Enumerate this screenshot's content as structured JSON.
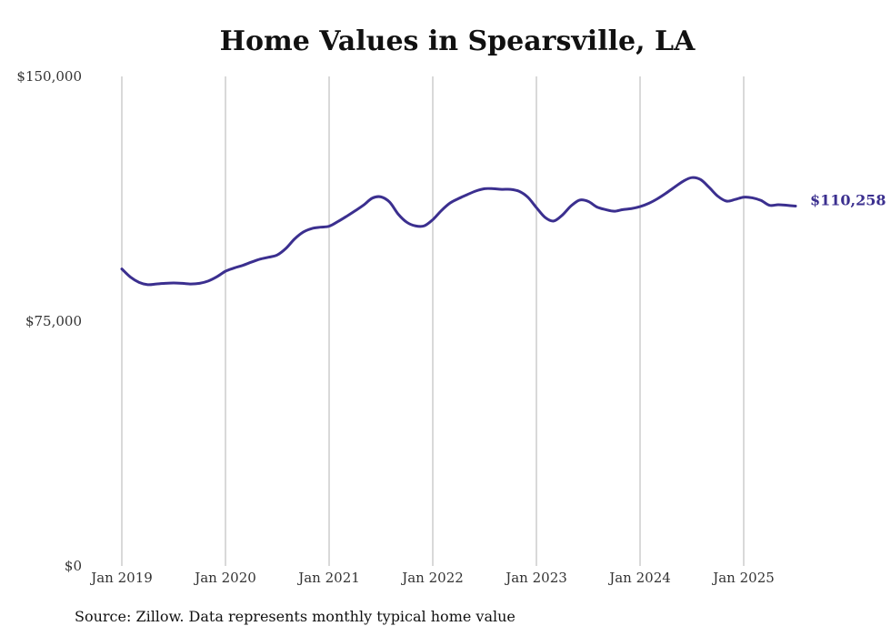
{
  "chart_data": {
    "type": "line",
    "title": "Home Values in Spearsville, LA",
    "source": "Source: Zillow. Data represents monthly typical home value",
    "xlabel": "",
    "ylabel": "",
    "ylim": [
      0,
      150000
    ],
    "yticks": [
      {
        "value": 0,
        "label": "$0"
      },
      {
        "value": 75000,
        "label": "$75,000"
      },
      {
        "value": 150000,
        "label": "$150,000"
      }
    ],
    "xticks": [
      {
        "year": 2019,
        "label": "Jan 2019"
      },
      {
        "year": 2020,
        "label": "Jan 2020"
      },
      {
        "year": 2021,
        "label": "Jan 2021"
      },
      {
        "year": 2022,
        "label": "Jan 2022"
      },
      {
        "year": 2023,
        "label": "Jan 2023"
      },
      {
        "year": 2024,
        "label": "Jan 2024"
      },
      {
        "year": 2025,
        "label": "Jan 2025"
      }
    ],
    "grid": "vertical",
    "line_color": "#3b2f8f",
    "end_label": "$110,258",
    "series": [
      {
        "points": [
          [
            "2019-01",
            91000
          ],
          [
            "2019-02",
            88500
          ],
          [
            "2019-03",
            86900
          ],
          [
            "2019-04",
            86200
          ],
          [
            "2019-05",
            86400
          ],
          [
            "2019-06",
            86600
          ],
          [
            "2019-07",
            86700
          ],
          [
            "2019-08",
            86600
          ],
          [
            "2019-09",
            86400
          ],
          [
            "2019-10",
            86600
          ],
          [
            "2019-11",
            87300
          ],
          [
            "2019-12",
            88600
          ],
          [
            "2020-01",
            90300
          ],
          [
            "2020-02",
            91300
          ],
          [
            "2020-03",
            92100
          ],
          [
            "2020-04",
            93100
          ],
          [
            "2020-05",
            94000
          ],
          [
            "2020-06",
            94600
          ],
          [
            "2020-07",
            95300
          ],
          [
            "2020-08",
            97300
          ],
          [
            "2020-09",
            100200
          ],
          [
            "2020-10",
            102300
          ],
          [
            "2020-11",
            103400
          ],
          [
            "2020-12",
            103800
          ],
          [
            "2021-01",
            104100
          ],
          [
            "2021-02",
            105500
          ],
          [
            "2021-03",
            107100
          ],
          [
            "2021-04",
            108800
          ],
          [
            "2021-05",
            110600
          ],
          [
            "2021-06",
            112700
          ],
          [
            "2021-07",
            113100
          ],
          [
            "2021-08",
            111500
          ],
          [
            "2021-09",
            107800
          ],
          [
            "2021-10",
            105300
          ],
          [
            "2021-11",
            104200
          ],
          [
            "2021-12",
            104200
          ],
          [
            "2022-01",
            106100
          ],
          [
            "2022-02",
            108900
          ],
          [
            "2022-03",
            111200
          ],
          [
            "2022-04",
            112600
          ],
          [
            "2022-05",
            113800
          ],
          [
            "2022-06",
            114900
          ],
          [
            "2022-07",
            115600
          ],
          [
            "2022-08",
            115600
          ],
          [
            "2022-09",
            115400
          ],
          [
            "2022-10",
            115400
          ],
          [
            "2022-11",
            114800
          ],
          [
            "2022-12",
            113000
          ],
          [
            "2023-01",
            109800
          ],
          [
            "2023-02",
            106800
          ],
          [
            "2023-03",
            105700
          ],
          [
            "2023-04",
            107500
          ],
          [
            "2023-05",
            110300
          ],
          [
            "2023-06",
            112100
          ],
          [
            "2023-07",
            111700
          ],
          [
            "2023-08",
            110000
          ],
          [
            "2023-09",
            109200
          ],
          [
            "2023-10",
            108700
          ],
          [
            "2023-11",
            109200
          ],
          [
            "2023-12",
            109500
          ],
          [
            "2024-01",
            110100
          ],
          [
            "2024-02",
            111100
          ],
          [
            "2024-03",
            112500
          ],
          [
            "2024-04",
            114200
          ],
          [
            "2024-05",
            116100
          ],
          [
            "2024-06",
            117900
          ],
          [
            "2024-07",
            119000
          ],
          [
            "2024-08",
            118400
          ],
          [
            "2024-09",
            116000
          ],
          [
            "2024-10",
            113300
          ],
          [
            "2024-11",
            111800
          ],
          [
            "2024-12",
            112300
          ],
          [
            "2025-01",
            113000
          ],
          [
            "2025-02",
            112800
          ],
          [
            "2025-03",
            112000
          ],
          [
            "2025-04",
            110500
          ],
          [
            "2025-05",
            110700
          ],
          [
            "2025-06",
            110500
          ],
          [
            "2025-07",
            110258
          ]
        ]
      }
    ]
  }
}
